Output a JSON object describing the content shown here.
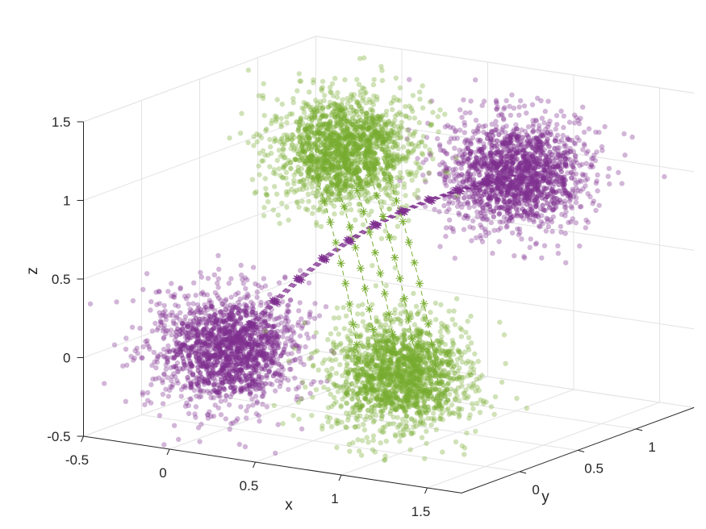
{
  "chart_data": {
    "type": "scatter",
    "xlabel": "x",
    "ylabel": "y",
    "zlabel": "z",
    "xlim": [
      -0.5,
      1.7
    ],
    "ylim": [
      -0.5,
      1.5
    ],
    "zlim": [
      -0.5,
      1.5
    ],
    "xticks": [
      "-0.5",
      "0",
      "0.5",
      "1",
      "1.5"
    ],
    "yticks": [
      "0",
      "0.5",
      "1"
    ],
    "zticks": [
      "-0.5",
      "0",
      "0.5",
      "1",
      "1.5"
    ],
    "grid": true,
    "clusters": [
      {
        "group": "purple",
        "center": [
          0,
          0,
          0
        ],
        "spread": 0.18
      },
      {
        "group": "purple",
        "center": [
          1,
          1,
          1
        ],
        "spread": 0.18
      },
      {
        "group": "green",
        "center": [
          1,
          0,
          0
        ],
        "spread": 0.18
      },
      {
        "group": "green",
        "center": [
          0,
          1,
          1
        ],
        "spread": 0.18
      }
    ],
    "trajectories": [
      {
        "group": "purple",
        "from": [
          0,
          0,
          0
        ],
        "to": [
          1,
          1,
          1
        ],
        "count": 5
      },
      {
        "group": "green",
        "from": [
          0,
          1,
          1
        ],
        "to": [
          1,
          0,
          0
        ],
        "count": 5
      }
    ],
    "colors": {
      "purple": "#7e2f8e",
      "green": "#77ac30"
    }
  }
}
